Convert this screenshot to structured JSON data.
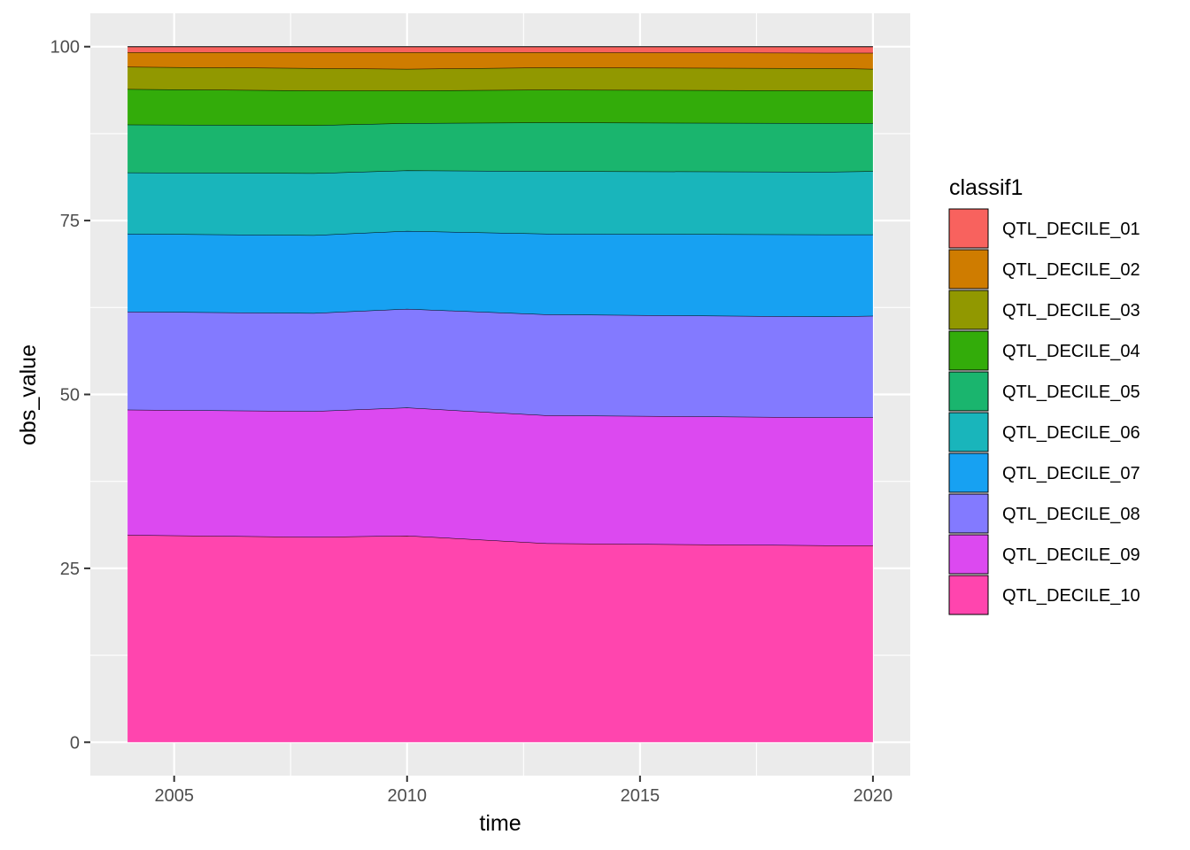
{
  "chart_data": {
    "type": "area",
    "stacked": true,
    "xlabel": "time",
    "ylabel": "obs_value",
    "xlim": [
      2003.2,
      2020.8
    ],
    "ylim": [
      -4.8,
      104.8
    ],
    "x_ticks": [
      2005,
      2010,
      2015,
      2020
    ],
    "y_ticks": [
      0,
      25,
      50,
      75,
      100
    ],
    "grid": true,
    "legend": {
      "title": "classif1",
      "position": "right"
    },
    "x": [
      2004,
      2008,
      2010,
      2013,
      2019,
      2020
    ],
    "series": [
      {
        "name": "QTL_DECILE_10",
        "color": "#FF45AE",
        "values": [
          29.8,
          29.5,
          29.7,
          28.6,
          28.3,
          28.3
        ]
      },
      {
        "name": "QTL_DECILE_09",
        "color": "#DC49F0",
        "values": [
          18.0,
          18.1,
          18.4,
          18.4,
          18.4,
          18.4
        ]
      },
      {
        "name": "QTL_DECILE_08",
        "color": "#837AFF",
        "values": [
          14.1,
          14.1,
          14.2,
          14.5,
          14.5,
          14.6
        ]
      },
      {
        "name": "QTL_DECILE_07",
        "color": "#17A1F2",
        "values": [
          11.2,
          11.2,
          11.2,
          11.6,
          11.8,
          11.7
        ]
      },
      {
        "name": "QTL_DECILE_06",
        "color": "#19B5BB",
        "values": [
          8.8,
          8.9,
          8.7,
          9.0,
          9.0,
          9.1
        ]
      },
      {
        "name": "QTL_DECILE_05",
        "color": "#1AB56E",
        "values": [
          6.9,
          6.9,
          6.8,
          7.0,
          7.0,
          6.9
        ]
      },
      {
        "name": "QTL_DECILE_04",
        "color": "#33AC0A",
        "values": [
          5.1,
          5.0,
          4.7,
          4.7,
          4.7,
          4.7
        ]
      },
      {
        "name": "QTL_DECILE_03",
        "color": "#919800",
        "values": [
          3.2,
          3.2,
          3.1,
          3.2,
          3.2,
          3.1
        ]
      },
      {
        "name": "QTL_DECILE_02",
        "color": "#CF7C00",
        "values": [
          2.1,
          2.3,
          2.4,
          2.2,
          2.2,
          2.3
        ]
      },
      {
        "name": "QTL_DECILE_01",
        "color": "#F8625E",
        "values": [
          0.8,
          0.8,
          0.8,
          0.8,
          0.9,
          0.9
        ]
      }
    ]
  }
}
